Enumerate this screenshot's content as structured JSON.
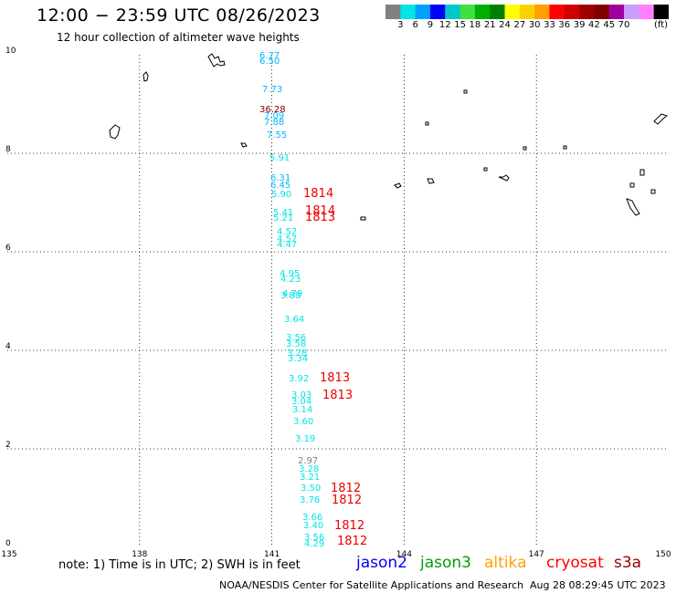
{
  "header": {
    "title": "12:00 − 23:59 UTC 08/26/2023",
    "subtitle": "12 hour collection of altimeter wave heights"
  },
  "colorbar": {
    "colors": [
      "#808080",
      "#00e5e5",
      "#00a0ff",
      "#0000ff",
      "#00c8c8",
      "#40e040",
      "#00b000",
      "#008000",
      "#ffff00",
      "#ffd000",
      "#ffa000",
      "#ff0000",
      "#d00000",
      "#a00000",
      "#800000",
      "#a000a0",
      "#c8a0ff",
      "#ff80ff",
      "#000000"
    ],
    "labels": [
      "3",
      "6",
      "9",
      "12",
      "15",
      "18",
      "21",
      "24",
      "27",
      "30",
      "33",
      "36",
      "39",
      "42",
      "45",
      "70"
    ],
    "unit": "(ft)"
  },
  "axes": {
    "lat_labels": [
      "10",
      "8",
      "6",
      "4",
      "2",
      "0"
    ],
    "lon_labels": [
      "135",
      "138",
      "141",
      "144",
      "147",
      "150"
    ]
  },
  "observations": [
    {
      "label": "6.77",
      "color": "#00b8ff"
    },
    {
      "label": "6.50",
      "color": "#00b8ff"
    },
    {
      "label": "7.73",
      "color": "#00b8ff"
    },
    {
      "label": "36.28",
      "color": "#800000"
    },
    {
      "label": "7.09",
      "color": "#00b8ff"
    },
    {
      "label": "7.88",
      "color": "#00b8ff"
    },
    {
      "label": "7.55",
      "color": "#00b8ff"
    },
    {
      "label": "5.91",
      "color": "#00e5e5"
    },
    {
      "label": "6.31",
      "color": "#00b8ff"
    },
    {
      "label": "6.45",
      "color": "#00b8ff"
    },
    {
      "label": "5.90",
      "color": "#00e5e5"
    },
    {
      "label": "5.41",
      "color": "#00e5e5"
    },
    {
      "label": "5.21",
      "color": "#00e5e5"
    },
    {
      "label": "4.52",
      "color": "#00e5e5"
    },
    {
      "label": "4.57",
      "color": "#00e5e5"
    },
    {
      "label": "4.47",
      "color": "#00e5e5"
    },
    {
      "label": "4.95",
      "color": "#00e5e5"
    },
    {
      "label": "4.23",
      "color": "#00e5e5"
    },
    {
      "label": "4.79",
      "color": "#00e5e5"
    },
    {
      "label": "3.88",
      "color": "#00e5e5"
    },
    {
      "label": "3.64",
      "color": "#00e5e5"
    },
    {
      "label": "3.56",
      "color": "#00e5e5"
    },
    {
      "label": "3.58",
      "color": "#00e5e5"
    },
    {
      "label": "3.28",
      "color": "#00e5e5"
    },
    {
      "label": "3.34",
      "color": "#00e5e5"
    },
    {
      "label": "3.92",
      "color": "#00e5e5"
    },
    {
      "label": "3.03",
      "color": "#00e5e5"
    },
    {
      "label": "3.04",
      "color": "#00e5e5"
    },
    {
      "label": "3.14",
      "color": "#00e5e5"
    },
    {
      "label": "3.60",
      "color": "#00e5e5"
    },
    {
      "label": "3.19",
      "color": "#00e5e5"
    },
    {
      "label": "2.97",
      "color": "#808080"
    },
    {
      "label": "3.28",
      "color": "#00e5e5"
    },
    {
      "label": "3.21",
      "color": "#00e5e5"
    },
    {
      "label": "3.50",
      "color": "#00e5e5"
    },
    {
      "label": "3.76",
      "color": "#00e5e5"
    },
    {
      "label": "3.66",
      "color": "#00e5e5"
    },
    {
      "label": "3.40",
      "color": "#00e5e5"
    },
    {
      "label": "3.56",
      "color": "#00e5e5"
    },
    {
      "label": "4.29",
      "color": "#00e5e5"
    }
  ],
  "time_labels": [
    "1814",
    "1814",
    "1813",
    "1813",
    "1813",
    "1812",
    "1812",
    "1812",
    "1812"
  ],
  "footer": {
    "note": "note:  1) Time is in UTC;  2) SWH is in feet",
    "legend": [
      {
        "name": "jason2",
        "color": "#0000ff"
      },
      {
        "name": "jason3",
        "color": "#00a000"
      },
      {
        "name": "altika",
        "color": "#ffa000"
      },
      {
        "name": "cryosat",
        "color": "#ff0000"
      },
      {
        "name": "s3a",
        "color": "#a00000"
      }
    ],
    "credit": "NOAA/NESDIS Center for Satellite Applications and Research",
    "timestamp": "Aug 28 08:29:45 UTC 2023"
  }
}
